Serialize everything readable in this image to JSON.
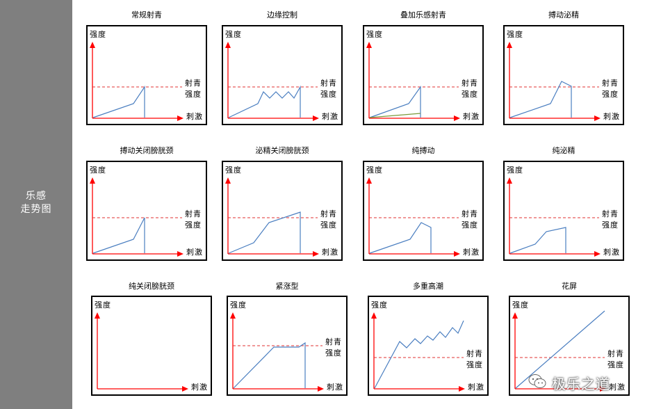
{
  "sidebar": {
    "line1": "乐感",
    "line2": "走势图"
  },
  "common": {
    "y_label": "强度",
    "x_label": "刺激",
    "thr_line1": "射青",
    "thr_line2": "强度"
  },
  "watermark": {
    "text": "极乐之道"
  },
  "colors": {
    "axis": "#ff0000",
    "curve": "#4a7ec0",
    "threshold": "#e03030",
    "extra": "#7a9a3a",
    "sidebar": "#7f7f7f"
  },
  "panels": [
    {
      "title": "常规射青"
    },
    {
      "title": "边缘控制"
    },
    {
      "title": "叠加乐感射青"
    },
    {
      "title": "搏动泌精"
    },
    {
      "title": "搏动关闭膀胱颈"
    },
    {
      "title": "泌精关闭膀胱颈"
    },
    {
      "title": "纯搏动"
    },
    {
      "title": "纯泌精"
    },
    {
      "title": "纯关闭膀胱颈"
    },
    {
      "title": "紧涨型"
    },
    {
      "title": "多重高潮"
    },
    {
      "title": "花屏"
    }
  ]
}
